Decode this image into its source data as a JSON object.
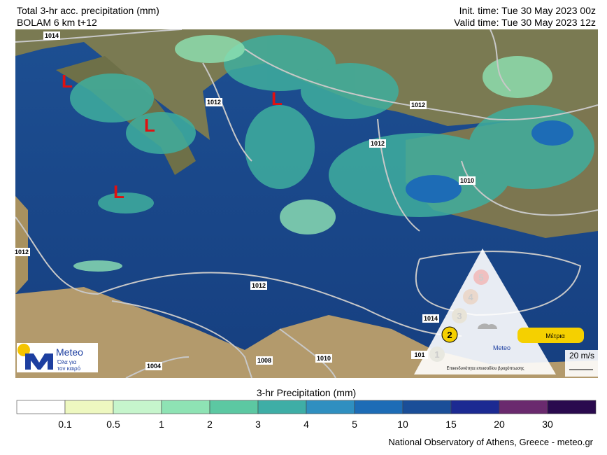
{
  "header": {
    "title": "Total 3-hr acc. precipitation (mm)",
    "model": "BOLAM 6 km t+12",
    "init_time": "Init. time: Tue 30 May 2023 00z",
    "valid_time": "Valid time: Tue 30 May 2023 12z"
  },
  "map": {
    "isobars": [
      "1014",
      "1012",
      "1012",
      "1012",
      "1012",
      "1010",
      "1012",
      "1014",
      "1010",
      "1008",
      "1004",
      "101"
    ],
    "lows": [
      "L",
      "L",
      "L",
      "L"
    ],
    "wind_scale": "20 m/s"
  },
  "logo": {
    "name": "Meteo",
    "tagline": [
      "Όλα για",
      "τον καιρό"
    ]
  },
  "risk": {
    "levels": [
      "1",
      "2",
      "3",
      "4",
      "5"
    ],
    "current": "Μέτρια",
    "caption": "Επικινδυνότητα επεισοδίου βροχόπτωσης",
    "logo_name": "Meteo"
  },
  "colorbar": {
    "title": "3-hr Precipitation (mm)",
    "labels": [
      "0.1",
      "0.5",
      "1",
      "2",
      "3",
      "4",
      "5",
      "10",
      "15",
      "20",
      "30"
    ],
    "colors": [
      "#ffffff",
      "#eef8c0",
      "#c6f5cc",
      "#8ee3b4",
      "#5cc8a2",
      "#3eaea6",
      "#2f8fc0",
      "#1d6cb6",
      "#1a4e98",
      "#1c2a92",
      "#6a2a6e",
      "#2a0a4e"
    ]
  },
  "footer": {
    "credit": "National Observatory of Athens, Greece - meteo.gr"
  }
}
